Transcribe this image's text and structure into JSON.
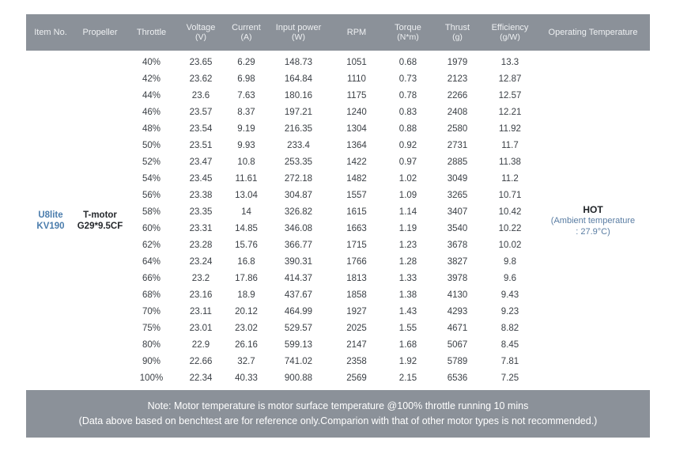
{
  "colors": {
    "header_bg": "#8b9199",
    "footer_bg": "#8b9199",
    "item_no_blue": "#4b7dad",
    "ambient_blue": "#5a7da3",
    "body_text": "#3b4046"
  },
  "table": {
    "headers": [
      {
        "label": "Item No.",
        "sub": ""
      },
      {
        "label": "Propeller",
        "sub": ""
      },
      {
        "label": "Throttle",
        "sub": ""
      },
      {
        "label": "Voltage",
        "sub": "(V)"
      },
      {
        "label": "Current",
        "sub": "(A)"
      },
      {
        "label": "Input power",
        "sub": "(W)"
      },
      {
        "label": "RPM",
        "sub": ""
      },
      {
        "label": "Torque",
        "sub": "(N*m)"
      },
      {
        "label": "Thrust",
        "sub": "(g)"
      },
      {
        "label": "Efficiency",
        "sub": "(g/W)"
      },
      {
        "label": "Operating Temperature",
        "sub": ""
      }
    ],
    "item_no": {
      "line1": "U8lite",
      "line2": "KV190"
    },
    "propeller": {
      "line1": "T-motor",
      "line2": "G29*9.5CF"
    },
    "columns": [
      "Throttle",
      "Voltage (V)",
      "Current (A)",
      "Input power (W)",
      "RPM",
      "Torque (N*m)",
      "Thrust (g)",
      "Efficiency (g/W)"
    ],
    "rows": [
      [
        "40%",
        "23.65",
        "6.29",
        "148.73",
        "1051",
        "0.68",
        "1979",
        "13.3"
      ],
      [
        "42%",
        "23.62",
        "6.98",
        "164.84",
        "1110",
        "0.73",
        "2123",
        "12.87"
      ],
      [
        "44%",
        "23.6",
        "7.63",
        "180.16",
        "1175",
        "0.78",
        "2266",
        "12.57"
      ],
      [
        "46%",
        "23.57",
        "8.37",
        "197.21",
        "1240",
        "0.83",
        "2408",
        "12.21"
      ],
      [
        "48%",
        "23.54",
        "9.19",
        "216.35",
        "1304",
        "0.88",
        "2580",
        "11.92"
      ],
      [
        "50%",
        "23.51",
        "9.93",
        "233.4",
        "1364",
        "0.92",
        "2731",
        "11.7"
      ],
      [
        "52%",
        "23.47",
        "10.8",
        "253.35",
        "1422",
        "0.97",
        "2885",
        "11.38"
      ],
      [
        "54%",
        "23.45",
        "11.61",
        "272.18",
        "1482",
        "1.02",
        "3049",
        "11.2"
      ],
      [
        "56%",
        "23.38",
        "13.04",
        "304.87",
        "1557",
        "1.09",
        "3265",
        "10.71"
      ],
      [
        "58%",
        "23.35",
        "14",
        "326.82",
        "1615",
        "1.14",
        "3407",
        "10.42"
      ],
      [
        "60%",
        "23.31",
        "14.85",
        "346.08",
        "1663",
        "1.19",
        "3540",
        "10.22"
      ],
      [
        "62%",
        "23.28",
        "15.76",
        "366.77",
        "1715",
        "1.23",
        "3678",
        "10.02"
      ],
      [
        "64%",
        "23.24",
        "16.8",
        "390.31",
        "1766",
        "1.28",
        "3827",
        "9.8"
      ],
      [
        "66%",
        "23.2",
        "17.86",
        "414.37",
        "1813",
        "1.33",
        "3978",
        "9.6"
      ],
      [
        "68%",
        "23.16",
        "18.9",
        "437.67",
        "1858",
        "1.38",
        "4130",
        "9.43"
      ],
      [
        "70%",
        "23.11",
        "20.12",
        "464.99",
        "1927",
        "1.43",
        "4293",
        "9.23"
      ],
      [
        "75%",
        "23.01",
        "23.02",
        "529.57",
        "2025",
        "1.55",
        "4671",
        "8.82"
      ],
      [
        "80%",
        "22.9",
        "26.16",
        "599.13",
        "2147",
        "1.68",
        "5067",
        "8.45"
      ],
      [
        "90%",
        "22.66",
        "32.7",
        "741.02",
        "2358",
        "1.92",
        "5789",
        "7.81"
      ],
      [
        "100%",
        "22.34",
        "40.33",
        "900.88",
        "2569",
        "2.15",
        "6536",
        "7.25"
      ]
    ],
    "operating_temperature": {
      "status": "HOT",
      "ambient_line1": "(Ambient temperature",
      "ambient_line2": ":  27.9°C)"
    }
  },
  "footer": {
    "line1": "Note: Motor temperature is motor surface temperature @100% throttle running 10 mins",
    "line2": "(Data above based on benchtest are for reference only.Comparion with that of other motor types is not recommended.)"
  }
}
